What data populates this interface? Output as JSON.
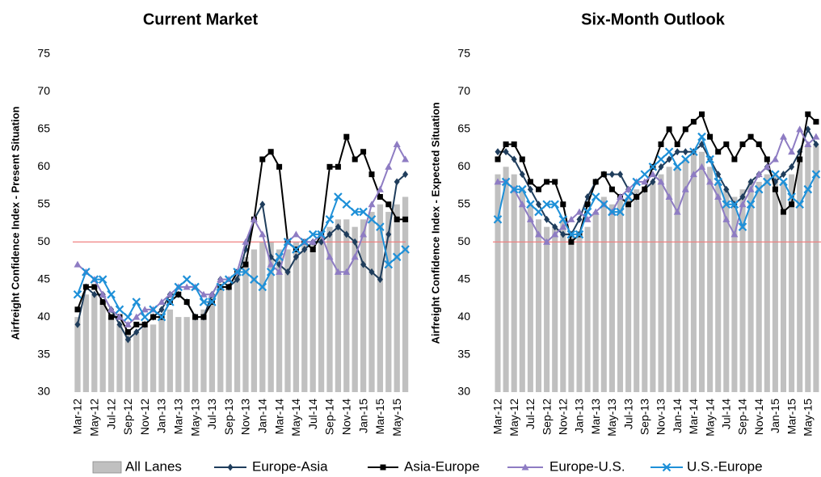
{
  "chart_data": [
    {
      "type": "combo",
      "title": "Current Market",
      "y_label": "Airfreight Confidence Index - Present Situation",
      "categories": [
        "Mar-12",
        null,
        "May-12",
        null,
        "Jul-12",
        null,
        "Sep-12",
        null,
        "Nov-12",
        null,
        "Jan-13",
        null,
        "Mar-13",
        null,
        "May-13",
        null,
        "Jul-13",
        null,
        "Sep-13",
        null,
        "Nov-13",
        null,
        "Jan-14",
        null,
        "Mar-14",
        null,
        "May-14",
        null,
        "Jul-14",
        null,
        "Sep-14",
        null,
        "Nov-14",
        null,
        "Jan-15",
        null,
        "Mar-15",
        null,
        "May-15",
        null
      ],
      "ylim": [
        30,
        75
      ],
      "yticks": [
        30,
        35,
        40,
        45,
        50,
        55,
        60,
        65,
        70,
        75
      ],
      "reference_line": 50,
      "reference_color": "#f08080",
      "series": [
        {
          "name": "All Lanes",
          "type": "bar",
          "color": "#c0c0c0",
          "values": [
            40,
            43,
            43,
            42,
            40,
            39,
            38,
            38,
            39,
            39,
            40,
            41,
            40,
            40,
            40,
            41,
            43,
            44,
            44,
            46,
            48,
            49,
            50,
            50,
            49,
            49,
            50,
            50,
            50,
            51,
            52,
            53,
            53,
            52,
            53,
            54,
            55,
            54,
            55,
            56
          ]
        },
        {
          "name": "Europe-Asia",
          "type": "line",
          "marker": "diamond",
          "color": "#1f3d5c",
          "values": [
            39,
            44,
            43,
            43,
            41,
            39,
            37,
            38,
            39,
            40,
            41,
            43,
            43,
            42,
            40,
            40,
            43,
            45,
            44,
            45,
            49,
            53,
            55,
            48,
            47,
            46,
            48,
            49,
            50,
            50,
            51,
            52,
            51,
            50,
            47,
            46,
            45,
            51,
            58,
            59
          ]
        },
        {
          "name": "Asia-Europe",
          "type": "line",
          "marker": "square",
          "color": "#000000",
          "values": [
            41,
            44,
            44,
            42,
            40,
            40,
            38,
            39,
            39,
            40,
            40,
            42,
            43,
            42,
            40,
            40,
            42,
            44,
            44,
            46,
            47,
            53,
            61,
            62,
            60,
            50,
            49,
            50,
            49,
            51,
            60,
            60,
            64,
            61,
            62,
            59,
            56,
            55,
            53,
            53
          ]
        },
        {
          "name": "Europe-U.S.",
          "type": "line",
          "marker": "triangle",
          "color": "#8e7cc3",
          "values": [
            47,
            46,
            45,
            43,
            41,
            40,
            39,
            40,
            41,
            41,
            42,
            43,
            44,
            44,
            44,
            43,
            43,
            45,
            45,
            46,
            50,
            53,
            51,
            47,
            46,
            50,
            51,
            50,
            50,
            51,
            48,
            46,
            46,
            48,
            51,
            55,
            57,
            60,
            63,
            61
          ]
        },
        {
          "name": "U.S.-Europe",
          "type": "line",
          "marker": "x",
          "color": "#1e90d8",
          "values": [
            43,
            46,
            45,
            45,
            43,
            41,
            40,
            42,
            40,
            41,
            40,
            42,
            44,
            45,
            44,
            42,
            42,
            44,
            45,
            46,
            46,
            45,
            44,
            46,
            48,
            50,
            49,
            50,
            51,
            51,
            53,
            56,
            55,
            54,
            54,
            53,
            52,
            47,
            48,
            49
          ]
        }
      ]
    },
    {
      "type": "combo",
      "title": "Six-Month Outlook",
      "y_label": "Airfreight Confidence Index - Expected Situation",
      "categories": [
        "Mar-12",
        null,
        "May-12",
        null,
        "Jul-12",
        null,
        "Sep-12",
        null,
        "Nov-12",
        null,
        "Jan-13",
        null,
        "Mar-13",
        null,
        "May-13",
        null,
        "Jul-13",
        null,
        "Sep-13",
        null,
        "Nov-13",
        null,
        "Jan-14",
        null,
        "Mar-14",
        null,
        "May-14",
        null,
        "Jul-14",
        null,
        "Sep-14",
        null,
        "Nov-14",
        null,
        "Jan-15",
        null,
        "Mar-15",
        null,
        "May-15",
        null
      ],
      "ylim": [
        30,
        75
      ],
      "yticks": [
        30,
        35,
        40,
        45,
        50,
        55,
        60,
        65,
        70,
        75
      ],
      "reference_line": 50,
      "reference_color": "#f08080",
      "series": [
        {
          "type": "bar",
          "color": "#c0c0c0",
          "values": [
            59,
            60,
            59,
            57,
            55,
            53,
            52,
            52,
            53,
            51,
            51,
            52,
            54,
            56,
            55,
            56,
            56,
            57,
            57,
            58,
            59,
            60,
            60,
            61,
            62,
            62,
            60,
            58,
            57,
            56,
            57,
            58,
            58,
            59,
            59,
            58,
            59,
            61,
            63,
            63
          ]
        },
        {
          "type": "line",
          "marker": "diamond",
          "color": "#1f3d5c",
          "values": [
            62,
            62,
            61,
            59,
            57,
            55,
            53,
            52,
            51,
            51,
            53,
            56,
            58,
            59,
            59,
            59,
            57,
            56,
            57,
            58,
            60,
            61,
            62,
            62,
            62,
            63,
            61,
            59,
            57,
            55,
            56,
            58,
            59,
            60,
            58,
            59,
            60,
            62,
            65,
            63
          ]
        },
        {
          "type": "line",
          "marker": "square",
          "color": "#000000",
          "values": [
            61,
            63,
            63,
            61,
            58,
            57,
            58,
            58,
            55,
            50,
            51,
            55,
            58,
            59,
            57,
            56,
            55,
            56,
            57,
            60,
            63,
            65,
            63,
            65,
            66,
            67,
            64,
            62,
            63,
            61,
            63,
            64,
            63,
            61,
            57,
            54,
            55,
            61,
            67,
            66
          ]
        },
        {
          "type": "line",
          "marker": "triangle",
          "color": "#8e7cc3",
          "values": [
            58,
            58,
            57,
            55,
            53,
            51,
            50,
            51,
            52,
            53,
            54,
            53,
            54,
            55,
            54,
            56,
            57,
            58,
            58,
            59,
            58,
            56,
            54,
            57,
            59,
            60,
            58,
            56,
            53,
            51,
            55,
            57,
            59,
            60,
            61,
            64,
            62,
            65,
            63,
            64
          ]
        },
        {
          "type": "line",
          "marker": "x",
          "color": "#1e90d8",
          "values": [
            53,
            58,
            57,
            57,
            55,
            54,
            55,
            55,
            53,
            51,
            51,
            54,
            56,
            55,
            54,
            54,
            56,
            58,
            59,
            60,
            61,
            62,
            60,
            61,
            62,
            64,
            61,
            58,
            55,
            55,
            52,
            55,
            57,
            58,
            59,
            58,
            56,
            55,
            57,
            59
          ]
        }
      ]
    }
  ]
}
